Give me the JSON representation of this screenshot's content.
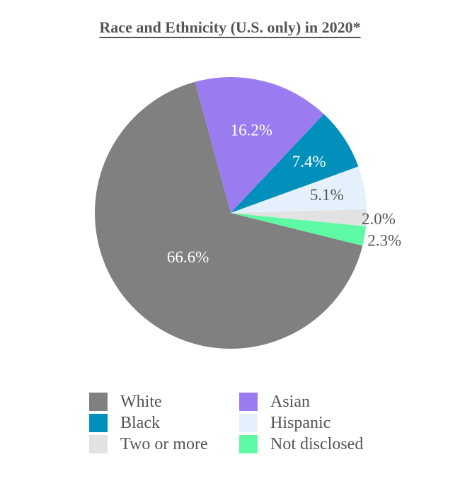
{
  "chart_data": {
    "type": "pie",
    "title": "Race and Ethnicity (U.S. only) in 2020*",
    "categories": [
      "White",
      "Asian",
      "Black",
      "Hispanic",
      "Two or more",
      "Not disclosed"
    ],
    "values": [
      66.6,
      16.2,
      7.4,
      5.1,
      2.0,
      2.3
    ],
    "value_labels": [
      "66.6%",
      "16.2%",
      "7.4%",
      "5.1%",
      "2.0%",
      "2.3%"
    ],
    "colors": [
      "#808080",
      "#9A7CF0",
      "#0090BB",
      "#E4F1FC",
      "#E2E2E2",
      "#5EF9A4"
    ],
    "legend_position": "bottom"
  }
}
